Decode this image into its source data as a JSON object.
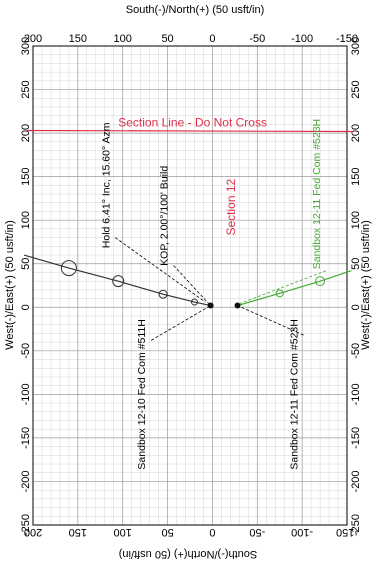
{
  "chart_data": {
    "type": "scatter",
    "title": "",
    "xlabel_top": "South(-)/North(+) (50 usft/in)",
    "xlabel_bottom": "South(-)/North(+) (50 usft/in)",
    "ylabel_left": "West(-)/East(+) (50 usft/in)",
    "ylabel_right": "West(-)/East(+) (50 usft/in)",
    "north_range": [
      200,
      -150
    ],
    "east_range": [
      -250,
      300
    ],
    "north_ticks": [
      200,
      150,
      100,
      50,
      0,
      -50,
      -100,
      -150
    ],
    "east_ticks": [
      -250,
      -200,
      -150,
      -100,
      -50,
      0,
      50,
      100,
      150,
      200,
      250,
      300
    ],
    "grid": true,
    "colors": {
      "well_511h": "#333333",
      "well_523h": "#44aa33",
      "section_line": "#e0304a",
      "section_label": "#e0304a",
      "grid": "#bbbbbb"
    },
    "section_line": {
      "label": "Section Line - Do Not Cross",
      "east": 203
    },
    "section_label": {
      "text": "Section 12",
      "north": -25,
      "east": 115
    },
    "series": [
      {
        "name": "Sandbox 12-10 Fed Com #511H",
        "surface": {
          "north": 2,
          "east": 2
        },
        "points": [
          {
            "north": 2,
            "east": 2
          },
          {
            "north": 20,
            "east": 6
          },
          {
            "north": 55,
            "east": 15
          },
          {
            "north": 105,
            "east": 30
          },
          {
            "north": 160,
            "east": 45
          },
          {
            "north": 210,
            "east": 60
          }
        ],
        "markers": [
          {
            "north": 20,
            "east": 6,
            "r": 3
          },
          {
            "north": 55,
            "east": 15,
            "r": 4
          },
          {
            "north": 105,
            "east": 30,
            "r": 5.5
          },
          {
            "north": 160,
            "east": 45,
            "r": 7.5
          }
        ]
      },
      {
        "name": "Sandbox 12-11 Fed Com #523H",
        "surface": {
          "north": -28,
          "east": 2
        },
        "points": [
          {
            "north": -28,
            "east": 2
          },
          {
            "north": -75,
            "east": 16
          },
          {
            "north": -120,
            "east": 30
          },
          {
            "north": -155,
            "east": 42
          }
        ],
        "markers": [
          {
            "north": -75,
            "east": 16,
            "r": 3.5
          },
          {
            "north": -120,
            "east": 30,
            "r": 4.5
          }
        ]
      }
    ],
    "annotations": [
      {
        "text": "Hold 6.41° Inc, 15.60° Azm",
        "north": 115,
        "east": 140,
        "color": "#000000"
      },
      {
        "text": "KOP, 2.00°/100' Build",
        "north": 50,
        "east": 105,
        "color": "#000000"
      },
      {
        "text": "Sandbox 12-10 Fed Com #511H",
        "north": 75,
        "east": -100,
        "color": "#000000"
      },
      {
        "text": "Sandbox 12-11 Fed Com #523H",
        "north": -95,
        "east": -100,
        "color": "#000000"
      },
      {
        "text": "Sandbox 12-11 Fed Com #523H",
        "north": -120,
        "east": 130,
        "color": "#44aa33"
      }
    ]
  }
}
